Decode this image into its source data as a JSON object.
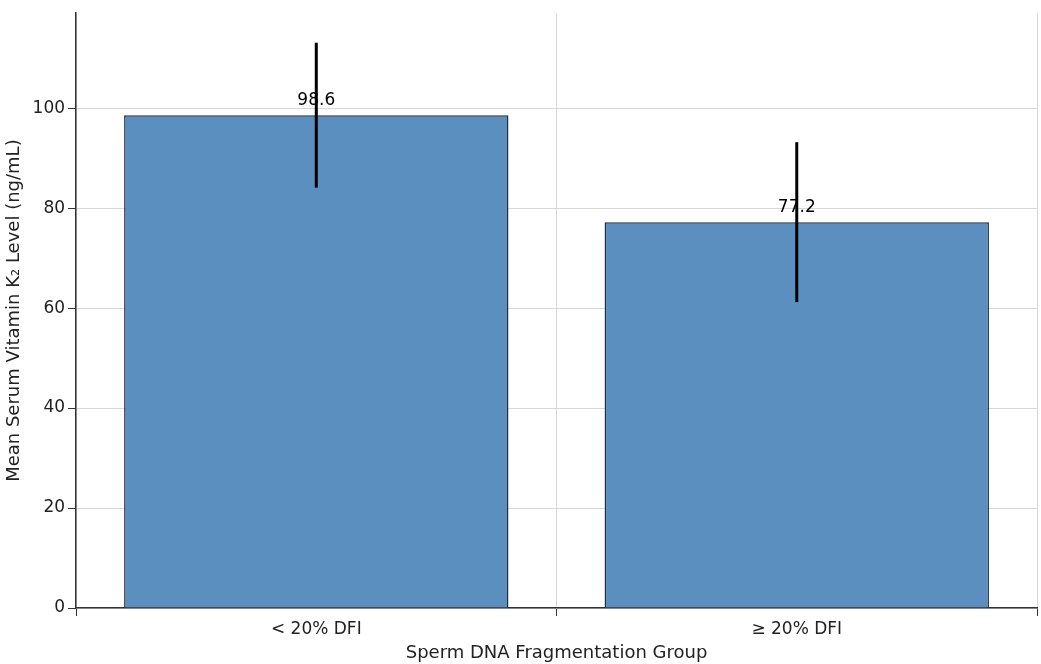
{
  "chart_data": {
    "type": "bar",
    "xlabel": "Sperm DNA Fragmentation Group",
    "ylabel": "Mean Serum Vitamin K₂ Level (ng/mL)",
    "categories": [
      "< 20% DFI",
      "≥ 20% DFI"
    ],
    "values": [
      98.6,
      77.2
    ],
    "errors": [
      14.5,
      16
    ],
    "color": "#5a8fbf",
    "ylim": [
      0,
      119
    ],
    "yticks": [
      0,
      20,
      40,
      60,
      80,
      100
    ],
    "grid": true,
    "data_labels": true,
    "legend": false
  }
}
